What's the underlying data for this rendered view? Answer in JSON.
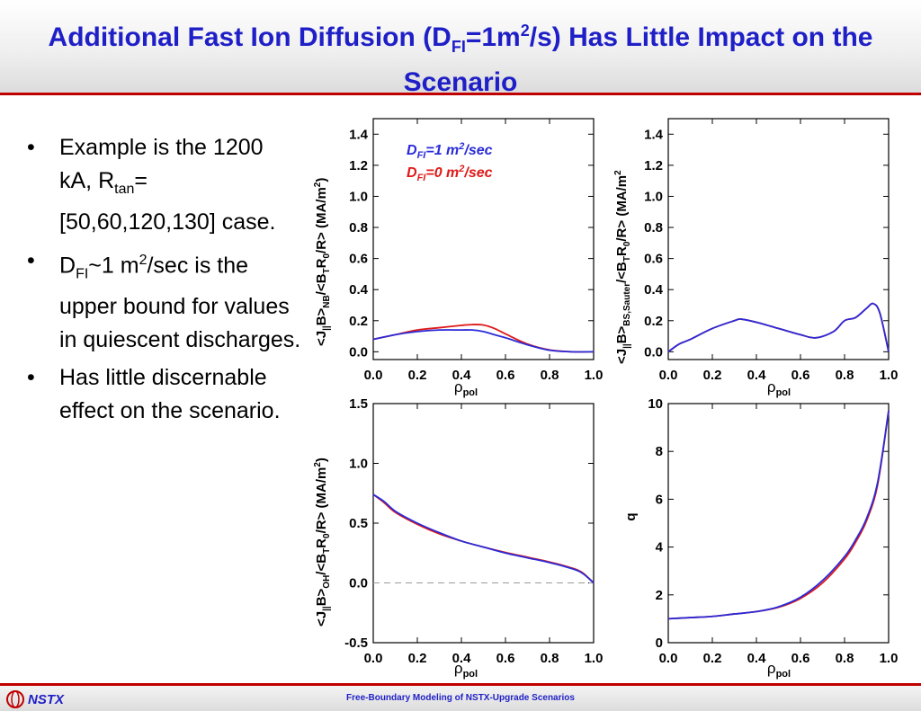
{
  "slide": {
    "title_pre": "Additional Fast Ion Diffusion (D",
    "title_sub": "FI",
    "title_mid": "=1m",
    "title_sup": "2",
    "title_post": "/s) Has Little Impact on the Scenario",
    "footer_logo": "NSTX",
    "footer_text": "Free-Boundary Modeling of NSTX-Upgrade Scenarios",
    "colors": {
      "title": "#1f1fc8",
      "rule": "#c00000",
      "series_dfi1": "#2a2ad8",
      "series_dfi0": "#e01818",
      "zero_line": "#999999"
    }
  },
  "bullets": {
    "b1_pre": "Example is the 1200 kA, R",
    "b1_sub": "tan",
    "b1_post": "=[50,60,120,130] case.",
    "b2_pre": "D",
    "b2_sub": "FI",
    "b2_mid": "~1 m",
    "b2_sup": "2",
    "b2_post": "/sec is the upper bound for values in quiescent discharges.",
    "b3": "Has little discernable effect on the scenario."
  },
  "legend": {
    "dfi1": {
      "a": "D",
      "sub": "FI",
      "b": "=1 m",
      "sup": "2",
      "c": "/sec"
    },
    "dfi0": {
      "a": "D",
      "sub": "FI",
      "b": "=0 m",
      "sup": "2",
      "c": "/sec"
    }
  },
  "axes": {
    "x_main": "ρ",
    "x_sub": "pol",
    "nb": {
      "a": "<J",
      "s1": "||",
      "b": "B>",
      "s2": "NB",
      "c": "/<B",
      "s3": "T",
      "d": "R",
      "s4": "0",
      "e": "/R> (MA/m",
      "sup": "2",
      "f": ")"
    },
    "bs": {
      "a": "<J",
      "s1": "||",
      "b": "B>",
      "s2": "BS,Sauter",
      "c": "/<B",
      "s3": "T",
      "d": "R",
      "s4": "0",
      "e": "/R> (MA/m",
      "sup": "2"
    },
    "oh": {
      "a": "<J",
      "s1": "||",
      "b": "B>",
      "s2": "OH",
      "c": "/<B",
      "s3": "T",
      "d": "R",
      "s4": "0",
      "e": "/R> (MA/m",
      "sup": "2",
      "f": ")"
    },
    "q": "q"
  },
  "chart_data": [
    {
      "type": "line",
      "id": "nb",
      "xlim": [
        0.0,
        1.0
      ],
      "ylim": [
        -0.05,
        1.5
      ],
      "xticks": [
        "0.0",
        "0.2",
        "0.4",
        "0.6",
        "0.8",
        "1.0"
      ],
      "yticks": [
        "0.0",
        "0.2",
        "0.4",
        "0.6",
        "0.8",
        "1.0",
        "1.2",
        "1.4"
      ],
      "x": [
        0.0,
        0.1,
        0.2,
        0.3,
        0.4,
        0.45,
        0.5,
        0.55,
        0.6,
        0.7,
        0.8,
        0.9,
        1.0
      ],
      "series": [
        {
          "color": "#2a2ad8",
          "values": [
            0.08,
            0.11,
            0.13,
            0.14,
            0.14,
            0.14,
            0.13,
            0.11,
            0.09,
            0.045,
            0.01,
            0.0,
            0.0
          ]
        },
        {
          "color": "#e01818",
          "values": [
            0.08,
            0.11,
            0.14,
            0.155,
            0.17,
            0.175,
            0.172,
            0.15,
            0.115,
            0.05,
            0.012,
            0.0,
            0.0
          ]
        }
      ]
    },
    {
      "type": "line",
      "id": "bs",
      "xlim": [
        0.0,
        1.0
      ],
      "ylim": [
        -0.05,
        1.5
      ],
      "xticks": [
        "0.0",
        "0.2",
        "0.4",
        "0.6",
        "0.8",
        "1.0"
      ],
      "yticks": [
        "0.0",
        "0.2",
        "0.4",
        "0.6",
        "0.8",
        "1.0",
        "1.2",
        "1.4"
      ],
      "x": [
        0.0,
        0.05,
        0.1,
        0.2,
        0.3,
        0.33,
        0.4,
        0.5,
        0.6,
        0.67,
        0.75,
        0.8,
        0.85,
        0.9,
        0.93,
        0.96,
        1.0
      ],
      "series": [
        {
          "color": "#2a2ad8",
          "values": [
            0.0,
            0.05,
            0.08,
            0.15,
            0.2,
            0.21,
            0.19,
            0.15,
            0.11,
            0.09,
            0.13,
            0.2,
            0.22,
            0.28,
            0.31,
            0.25,
            0.0
          ]
        },
        {
          "color": "#e01818",
          "values": [
            0.0,
            0.05,
            0.08,
            0.15,
            0.2,
            0.21,
            0.19,
            0.15,
            0.11,
            0.09,
            0.13,
            0.2,
            0.22,
            0.28,
            0.31,
            0.25,
            0.0
          ]
        }
      ]
    },
    {
      "type": "line",
      "id": "oh",
      "xlim": [
        0.0,
        1.0
      ],
      "ylim": [
        -0.5,
        1.5
      ],
      "xticks": [
        "0.0",
        "0.2",
        "0.4",
        "0.6",
        "0.8",
        "1.0"
      ],
      "yticks": [
        "-0.5",
        "0.0",
        "0.5",
        "1.0",
        "1.5"
      ],
      "zero_line": 0.0,
      "x": [
        0.0,
        0.05,
        0.1,
        0.2,
        0.3,
        0.4,
        0.5,
        0.6,
        0.7,
        0.8,
        0.9,
        0.95,
        1.0
      ],
      "series": [
        {
          "color": "#2a2ad8",
          "values": [
            0.74,
            0.68,
            0.6,
            0.5,
            0.42,
            0.35,
            0.3,
            0.25,
            0.21,
            0.17,
            0.12,
            0.08,
            0.0
          ]
        },
        {
          "color": "#e01818",
          "values": [
            0.74,
            0.67,
            0.59,
            0.49,
            0.41,
            0.35,
            0.3,
            0.255,
            0.215,
            0.175,
            0.125,
            0.085,
            0.0
          ]
        }
      ]
    },
    {
      "type": "line",
      "id": "q",
      "xlim": [
        0.0,
        1.0
      ],
      "ylim": [
        0,
        10
      ],
      "xticks": [
        "0.0",
        "0.2",
        "0.4",
        "0.6",
        "0.8",
        "1.0"
      ],
      "yticks": [
        "0",
        "2",
        "4",
        "6",
        "8",
        "10"
      ],
      "x": [
        0.0,
        0.1,
        0.2,
        0.3,
        0.4,
        0.5,
        0.6,
        0.7,
        0.8,
        0.85,
        0.9,
        0.95,
        1.0
      ],
      "series": [
        {
          "color": "#2a2ad8",
          "values": [
            1.0,
            1.05,
            1.1,
            1.2,
            1.3,
            1.5,
            1.9,
            2.6,
            3.6,
            4.3,
            5.2,
            6.7,
            9.7
          ]
        },
        {
          "color": "#e01818",
          "values": [
            1.0,
            1.05,
            1.1,
            1.2,
            1.3,
            1.48,
            1.85,
            2.5,
            3.5,
            4.2,
            5.1,
            6.6,
            9.7
          ]
        }
      ]
    }
  ]
}
